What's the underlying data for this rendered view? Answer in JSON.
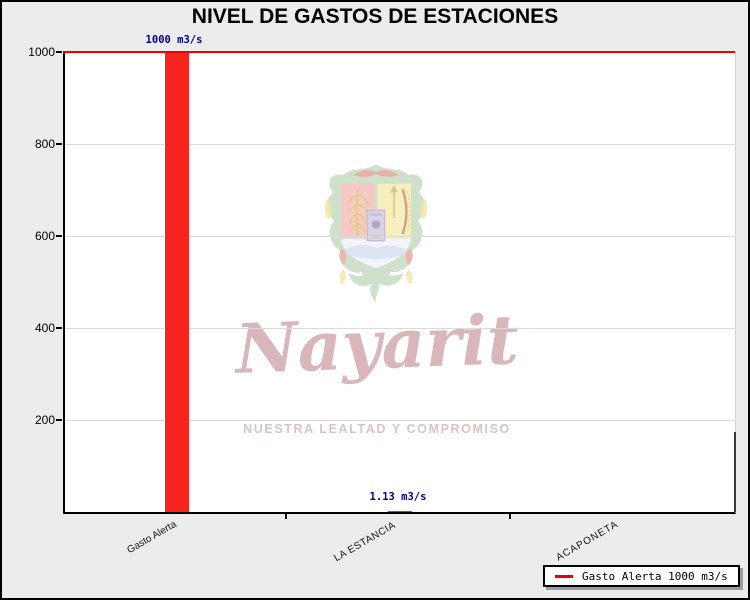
{
  "window": {
    "title": "NIVEL DE GASTOS DE ESTACIONES"
  },
  "chart_data": {
    "type": "bar",
    "title": "NIVEL DE GASTOS DE ESTACIONES",
    "categories": [
      "Gasto Alerta",
      "LA ESTANCIA",
      "ACAPONETA"
    ],
    "values": [
      1000,
      1.13,
      null
    ],
    "value_labels": [
      "1000 m3/s",
      "1.13 m3/s",
      ""
    ],
    "xlabel": "",
    "ylabel": "",
    "ylim": [
      0,
      1000
    ],
    "y_tick_interval": 200,
    "y_tick_labels": [
      "1000",
      "800",
      "600",
      "400",
      "200"
    ],
    "grid": "horizontal",
    "bar_color": "#f8231e",
    "value_label_color": "#00008b",
    "alert_line": {
      "value": 1000,
      "color": "#ee0000",
      "name": "Gasto Alerta"
    },
    "legend_position": "bottom-right"
  },
  "legend": {
    "items": [
      {
        "swatch_color": "#ee0000",
        "label": "Gasto Alerta 1000 m3/s"
      }
    ]
  },
  "watermark": {
    "emblem": "nayarit-coat-of-arms",
    "name": "Nayarit",
    "tagline": "NUESTRA LEALTAD Y COMPROMISO"
  },
  "colors": {
    "background": "#ececec",
    "plot_background": "#ffffff",
    "grid": "#dadada",
    "axis": "#000000"
  }
}
